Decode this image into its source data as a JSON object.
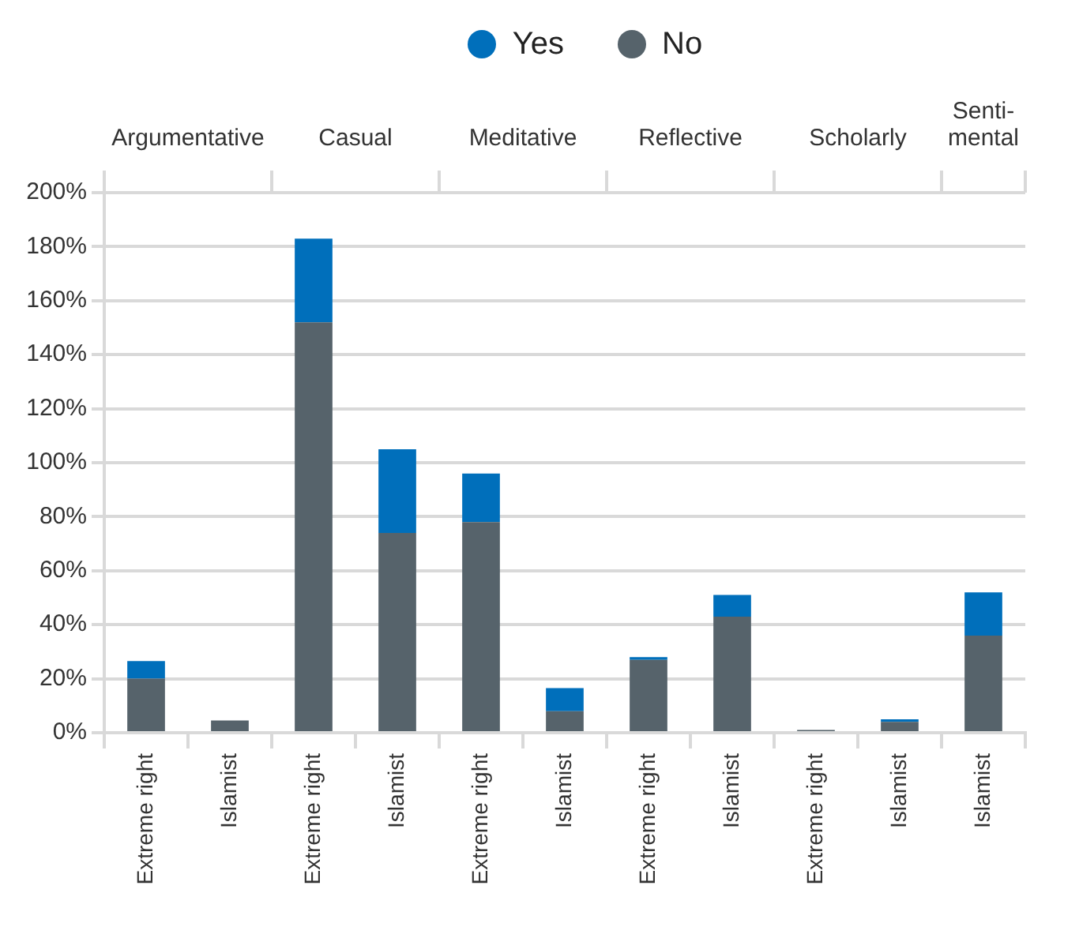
{
  "chart_data": [
    {
      "type": "bar",
      "stacked": true,
      "title": "Argumentative",
      "categories": [
        "Extreme right",
        "Islamist"
      ],
      "series": [
        {
          "name": "No",
          "color": "#56636b",
          "values": [
            20,
            4.5
          ]
        },
        {
          "name": "Yes",
          "color": "#006fbb",
          "values": [
            6.5,
            0
          ]
        }
      ],
      "ylim": [
        0,
        200
      ],
      "yticks": [
        {
          "value": 0,
          "label": "0%"
        },
        {
          "value": 20,
          "label": "20%"
        },
        {
          "value": 40,
          "label": "40%"
        },
        {
          "value": 60,
          "label": "60%"
        },
        {
          "value": 80,
          "label": "80%"
        },
        {
          "value": 100,
          "label": "100%"
        },
        {
          "value": 120,
          "label": "120%"
        },
        {
          "value": 140,
          "label": "140%"
        },
        {
          "value": 160,
          "label": "160%"
        },
        {
          "value": 180,
          "label": "180%"
        },
        {
          "value": 200,
          "label": "200%"
        }
      ],
      "grid": "y",
      "legend": "top",
      "marker": "circle"
    },
    {
      "type": "bar",
      "stacked": true,
      "title": "Casual",
      "categories": [
        "Extreme right",
        "Islamist"
      ],
      "series": [
        {
          "color": "#56636b",
          "values": [
            152,
            74
          ]
        },
        {
          "color": "#006fbb",
          "values": [
            31,
            31
          ]
        }
      ],
      "ylim": [
        0,
        200
      ],
      "yticks": [
        0,
        20,
        40,
        60,
        80,
        100,
        120,
        140,
        160,
        180,
        200
      ],
      "grid": "y",
      "tick_labels": "x"
    },
    {
      "type": "bar",
      "stacked": true,
      "title": "Meditative",
      "categories": [
        "Extreme right",
        "Islamist"
      ],
      "series": [
        {
          "color": "#56636b",
          "values": [
            78,
            8
          ]
        },
        {
          "color": "#006fbb",
          "values": [
            18,
            8.5
          ]
        }
      ],
      "ylim": [
        0,
        200
      ],
      "yticks": [
        0,
        20,
        40,
        60,
        80,
        100,
        120,
        140,
        160,
        180,
        200
      ],
      "grid": "y",
      "tick_labels": "x"
    },
    {
      "type": "bar",
      "stacked": true,
      "title": "Reflective",
      "categories": [
        "Extreme right",
        "Islamist"
      ],
      "series": [
        {
          "color": "#56636b",
          "values": [
            27,
            43
          ]
        },
        {
          "color": "#006fbb",
          "values": [
            1,
            8
          ]
        }
      ],
      "ylim": [
        0,
        200
      ],
      "yticks": [
        0,
        20,
        40,
        60,
        80,
        100,
        120,
        140,
        160,
        180,
        200
      ],
      "grid": "y",
      "tick_labels": "x"
    },
    {
      "type": "bar",
      "stacked": true,
      "title": "Scholarly",
      "categories": [
        "Extreme right",
        "Islamist"
      ],
      "series": [
        {
          "color": "#56636b",
          "values": [
            1,
            4
          ]
        },
        {
          "color": "#006fbb",
          "values": [
            0,
            1
          ]
        }
      ],
      "ylim": [
        0,
        200
      ],
      "yticks": [
        0,
        20,
        40,
        60,
        80,
        100,
        120,
        140,
        160,
        180,
        200
      ],
      "grid": "y",
      "tick_labels": "x"
    },
    {
      "type": "bar",
      "stacked": true,
      "title": "Senti-\nmental",
      "categories": [
        "Islamist"
      ],
      "series": [
        {
          "color": "#56636b",
          "values": [
            36
          ]
        },
        {
          "color": "#006fbb",
          "values": [
            16
          ]
        }
      ],
      "ylim": [
        0,
        200
      ],
      "yticks": [
        0,
        20,
        40,
        60,
        80,
        100,
        120,
        140,
        160,
        180,
        200
      ],
      "grid": "y",
      "tick_labels": "x"
    }
  ]
}
